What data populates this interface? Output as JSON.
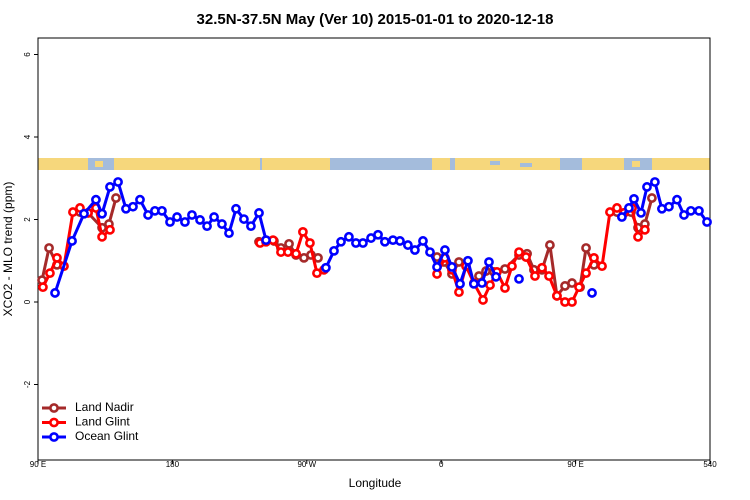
{
  "chart_data": {
    "type": "line",
    "title": "32.5N-37.5N May (Ver 10)   2015-01-01 to 2020-12-18",
    "x_label": "Longitude",
    "y_label": "XCO2 - MLO trend (ppm)",
    "xlim": [
      90,
      540
    ],
    "xticks": [
      {
        "value": 90,
        "label": "90 E"
      },
      180,
      {
        "value": 270,
        "label": "90 W"
      },
      {
        "value": 360,
        "label": "0"
      },
      {
        "value": 450,
        "label": "90 E"
      },
      540
    ],
    "ylim": [
      -3.83,
      6.4
    ],
    "yticks": [
      -2,
      0,
      2,
      4,
      6
    ],
    "legend": "bottom-left",
    "series": [
      {
        "name": "Land Nadir",
        "color": "#a52a2a",
        "x": [
          92.7,
          97.4,
          102.7,
          null,
          118.1,
          123.5,
          132.9,
          137.5,
          142.2,
          null,
          238.0,
          242.7,
          248.0,
          252.7,
          258.1,
          262.8,
          268.1,
          272.8,
          277.5,
          null,
          357.2,
          361.9,
          367.2,
          371.9,
          null,
          385.3,
          390.0,
          395.3,
          402.7,
          412.1,
          417.5,
          422.1,
          427.5,
          432.8,
          437.5,
          442.9,
          447.6,
          453.0,
          457.0,
          462.3,
          null,
          477.7,
          482.4,
          487.1,
          491.8,
          496.4,
          501.1
        ],
        "values": [
          0.53,
          1.31,
          0.9,
          null,
          2.18,
          2.16,
          1.8,
          1.89,
          2.52,
          null,
          1.46,
          1.5,
          1.48,
          1.31,
          1.41,
          1.14,
          1.07,
          1.14,
          1.07,
          null,
          1.09,
          0.97,
          0.68,
          0.97,
          null,
          0.63,
          0.75,
          0.73,
          0.8,
          1.14,
          1.17,
          0.78,
          0.78,
          1.38,
          0.15,
          0.39,
          0.46,
          0.36,
          1.31,
          0.9,
          null,
          2.18,
          2.16,
          2.18,
          1.8,
          1.89,
          2.52
        ]
      },
      {
        "name": "Land Glint",
        "color": "#ff0000",
        "x": [
          93.3,
          98.0,
          102.7,
          107.4,
          113.4,
          118.1,
          123.5,
          128.8,
          132.9,
          138.2,
          null,
          238.7,
          242.7,
          247.4,
          252.7,
          257.4,
          262.8,
          267.4,
          272.1,
          276.8,
          281.5,
          null,
          357.2,
          362.5,
          367.2,
          371.9,
          376.6,
          381.9,
          388.0,
          392.7,
          397.3,
          402.7,
          407.4,
          412.1,
          416.8,
          422.8,
          427.5,
          432.2,
          437.5,
          442.9,
          447.6,
          452.3,
          457.0,
          462.3,
          467.7,
          473.0,
          477.7,
          482.4,
          487.8,
          491.8,
          496.4
        ],
        "values": [
          0.36,
          0.7,
          1.07,
          0.87,
          2.18,
          2.28,
          2.16,
          2.28,
          1.58,
          1.75,
          null,
          1.43,
          1.46,
          1.5,
          1.21,
          1.21,
          1.17,
          1.7,
          1.43,
          0.7,
          0.78,
          null,
          0.68,
          1.07,
          0.78,
          0.24,
          0.87,
          0.46,
          0.05,
          0.41,
          0.73,
          0.34,
          0.87,
          1.21,
          1.09,
          0.63,
          0.83,
          0.63,
          0.15,
          0.0,
          0.0,
          0.36,
          0.7,
          1.07,
          0.87,
          2.18,
          2.28,
          2.16,
          2.28,
          1.58,
          1.75
        ]
      },
      {
        "name": "Ocean Glint",
        "color": "#0000ff",
        "x": [
          101.4,
          112.8,
          120.8,
          128.8,
          132.9,
          138.2,
          143.6,
          148.9,
          153.6,
          158.3,
          163.7,
          168.3,
          173.0,
          178.4,
          183.1,
          188.4,
          193.1,
          198.5,
          203.2,
          207.9,
          213.2,
          217.9,
          222.6,
          227.9,
          232.6,
          238.0,
          242.7,
          null,
          282.8,
          288.2,
          292.9,
          298.2,
          302.9,
          307.6,
          313.0,
          317.7,
          322.3,
          327.7,
          332.4,
          337.7,
          342.4,
          347.8,
          352.5,
          357.2,
          362.5,
          367.2,
          372.6,
          377.9,
          381.9,
          387.3,
          392.0,
          396.7,
          null,
          412.1,
          null,
          461.0,
          null,
          481.0,
          485.7,
          489.1,
          493.8,
          497.8,
          503.1,
          507.8,
          512.5,
          517.9,
          522.6,
          527.2,
          532.6,
          538.0
        ],
        "values": [
          0.22,
          1.48,
          2.14,
          2.48,
          2.14,
          2.79,
          2.91,
          2.26,
          2.31,
          2.48,
          2.11,
          2.21,
          2.21,
          1.94,
          2.06,
          1.94,
          2.11,
          1.99,
          1.84,
          2.06,
          1.89,
          1.67,
          2.26,
          2.01,
          1.84,
          2.16,
          1.5,
          null,
          0.83,
          1.24,
          1.46,
          1.58,
          1.43,
          1.43,
          1.55,
          1.63,
          1.46,
          1.5,
          1.48,
          1.38,
          1.26,
          1.48,
          1.21,
          0.85,
          1.26,
          0.85,
          0.44,
          1.0,
          0.44,
          0.46,
          0.97,
          0.61,
          null,
          0.56,
          null,
          0.22,
          null,
          2.06,
          2.28,
          2.5,
          2.16,
          2.79,
          2.91,
          2.26,
          2.31,
          2.48,
          2.11,
          2.21,
          2.21,
          1.94
        ]
      }
    ]
  }
}
